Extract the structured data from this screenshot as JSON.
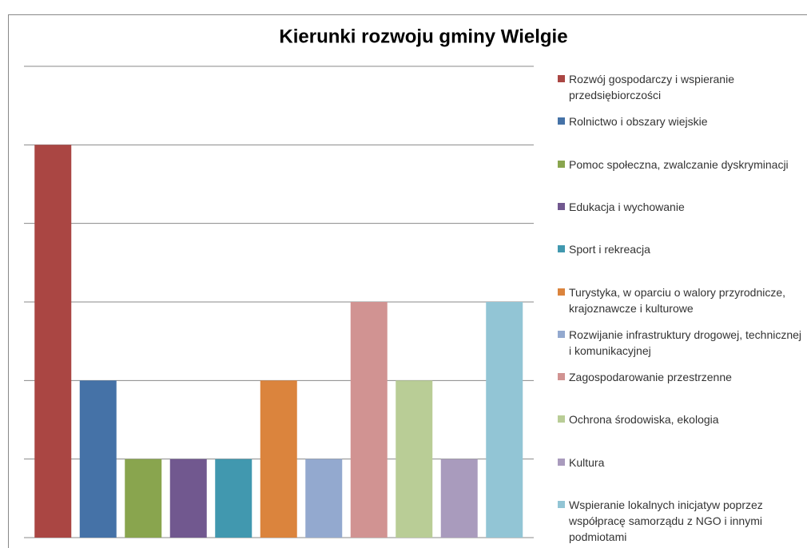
{
  "chart_data": {
    "type": "bar",
    "title": "Kierunki rozwoju gminy Wielgie",
    "categories": [
      "Rozwój gospodarczy i wspieranie przedsiębiorczości",
      "Rolnictwo i obszary wiejskie",
      "Pomoc społeczna, zwalczanie dyskryminacji",
      "Edukacja i wychowanie",
      "Sport i rekreacja",
      "Turystyka, w oparciu o walory przyrodnicze, krajoznawcze i kulturowe",
      "Rozwijanie infrastruktury drogowej, technicznej i komunikacyjnej",
      "Zagospodarowanie przestrzenne",
      "Ochrona środowiska, ekologia",
      "Kultura",
      "Wspieranie lokalnych inicjatyw poprzez współpracę samorządu z NGO i innymi podmiotami"
    ],
    "values": [
      5,
      2,
      1,
      1,
      1,
      2,
      1,
      3,
      2,
      1,
      3
    ],
    "colors": [
      "#aa4643",
      "#4572a7",
      "#89a54e",
      "#71588f",
      "#4198af",
      "#db843d",
      "#93a9cf",
      "#d19392",
      "#b9cd96",
      "#a99bbd",
      "#92c5d5"
    ],
    "ylim": [
      0,
      6
    ],
    "yticks": [
      0,
      1,
      2,
      3,
      4,
      5,
      6
    ],
    "grid": true
  }
}
